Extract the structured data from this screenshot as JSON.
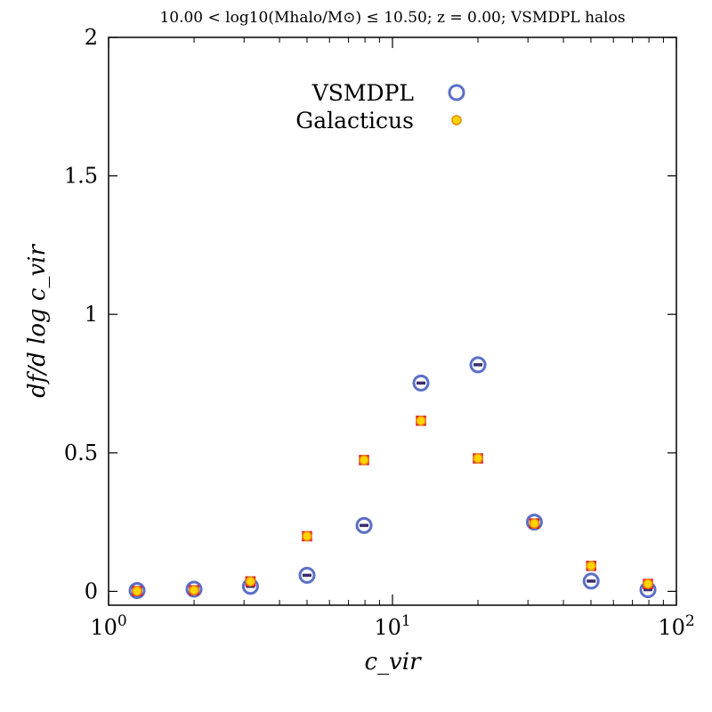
{
  "chart_data": {
    "type": "scatter",
    "title": "10.00 < log10(Mhalo/M⊙) ≤ 10.50; z = 0.00; VSMDPL halos",
    "xlabel": "c_vir",
    "ylabel": "df/d log c_vir",
    "xscale": "log",
    "xlim": [
      1,
      100
    ],
    "ylim": [
      -0.05,
      2
    ],
    "x_ticks": [
      1,
      10,
      100
    ],
    "x_tick_labels": [
      {
        "base": "10",
        "exp": "0"
      },
      {
        "base": "10",
        "exp": "1"
      },
      {
        "base": "10",
        "exp": "2"
      }
    ],
    "y_ticks": [
      0,
      0.5,
      1,
      1.5,
      2
    ],
    "y_tick_labels": [
      "0",
      "0.5",
      "1",
      "1.5",
      "2"
    ],
    "legend_position": "top-center",
    "series": [
      {
        "name": "VSMDPL",
        "marker": "open-circle",
        "color": "#5b6fc7",
        "errorbar_color": "#3b2d6e",
        "x": [
          1.26,
          2.0,
          3.16,
          5.0,
          7.94,
          12.6,
          20.0,
          31.6,
          50.1,
          79.4
        ],
        "y": [
          0.003,
          0.008,
          0.018,
          0.058,
          0.238,
          0.752,
          0.818,
          0.25,
          0.037,
          0.006
        ]
      },
      {
        "name": "Galacticus",
        "marker": "filled-circle",
        "color": "#ffd400",
        "edge_color": "#e88a00",
        "errorbar_color": "#e0102a",
        "x": [
          1.26,
          2.0,
          3.16,
          5.0,
          7.94,
          12.6,
          20.0,
          31.6,
          50.1,
          79.4
        ],
        "y": [
          0.001,
          0.004,
          0.036,
          0.199,
          0.474,
          0.616,
          0.48,
          0.245,
          0.092,
          0.027
        ]
      }
    ]
  }
}
